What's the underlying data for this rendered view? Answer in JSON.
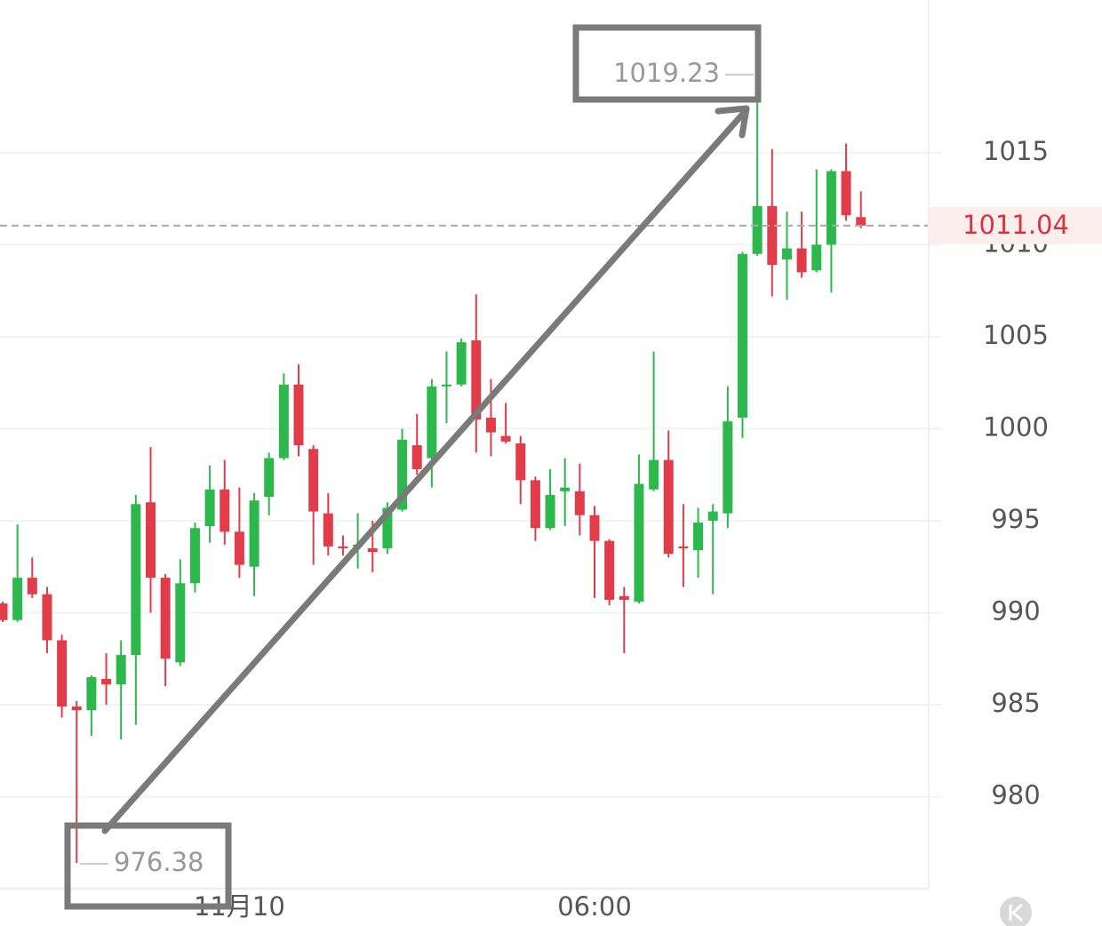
{
  "chart_data": {
    "type": "candlestick",
    "categories": [
      null,
      null,
      null,
      null,
      null,
      null,
      null,
      null,
      null,
      null,
      null,
      null,
      null,
      null,
      null,
      null,
      "11月10",
      null,
      null,
      null,
      null,
      null,
      null,
      null,
      null,
      null,
      null,
      null,
      null,
      null,
      null,
      null,
      null,
      null,
      null,
      null,
      null,
      null,
      null,
      null,
      "06:00",
      null,
      null,
      null,
      null,
      null,
      null,
      null,
      null,
      null,
      null,
      null,
      null,
      null,
      null,
      null,
      null,
      null,
      null
    ],
    "open": [
      990.5,
      989.6,
      991.9,
      991.0,
      988.5,
      984.9,
      984.7,
      986.4,
      986.1,
      987.7,
      996.0,
      991.9,
      987.3,
      991.6,
      994.7,
      996.7,
      994.4,
      992.5,
      996.3,
      998.4,
      1002.4,
      998.9,
      995.4,
      993.6,
      993.6,
      993.5,
      993.5,
      995.6,
      999.1,
      998.4,
      1002.3,
      1002.4,
      1004.8,
      1000.6,
      999.6,
      999.2,
      997.2,
      994.6,
      996.6,
      996.6,
      995.3,
      993.9,
      990.9,
      990.6,
      996.7,
      998.3,
      993.6,
      993.4,
      995.0,
      995.4,
      1000.6,
      1009.5,
      1012.1,
      1009.2,
      1009.8,
      1008.6,
      1010.0,
      1014.0,
      1011.5
    ],
    "high": [
      990.6,
      994.8,
      993.0,
      991.4,
      988.8,
      985.2,
      986.6,
      987.8,
      988.5,
      996.4,
      999.0,
      992.1,
      992.9,
      994.9,
      998.0,
      998.3,
      996.8,
      996.5,
      998.7,
      1003.0,
      1003.5,
      999.1,
      996.5,
      994.2,
      995.4,
      995.0,
      996.0,
      1000.0,
      1000.8,
      1002.7,
      1004.2,
      1004.9,
      1007.3,
      1002.7,
      1001.4,
      999.6,
      997.4,
      997.8,
      998.4,
      998.1,
      995.8,
      994.0,
      991.4,
      998.6,
      1004.2,
      999.9,
      995.9,
      995.7,
      995.9,
      1002.3,
      1009.6,
      1019.23,
      1015.2,
      1011.8,
      1011.8,
      1014.1,
      1014.1,
      1015.5,
      1012.9
    ],
    "low": [
      989.5,
      989.5,
      990.8,
      987.8,
      984.3,
      976.4,
      983.3,
      985.0,
      983.1,
      983.9,
      990.0,
      986.0,
      987.1,
      991.1,
      993.8,
      993.7,
      991.9,
      990.9,
      995.3,
      998.3,
      998.5,
      992.6,
      993.1,
      993.1,
      992.4,
      992.2,
      993.2,
      995.5,
      997.5,
      996.8,
      1000.3,
      1002.3,
      998.7,
      998.5,
      999.2,
      995.9,
      993.9,
      994.5,
      994.7,
      994.2,
      990.8,
      990.4,
      987.8,
      990.5,
      996.6,
      993.0,
      991.4,
      991.9,
      991.0,
      994.6,
      999.5,
      1009.4,
      1007.2,
      1007.0,
      1008.2,
      1008.5,
      1007.4,
      1011.3,
      1010.9
    ],
    "close": [
      989.6,
      991.9,
      991.0,
      988.5,
      984.9,
      984.7,
      986.5,
      986.1,
      987.7,
      995.9,
      991.9,
      987.5,
      991.6,
      994.6,
      996.7,
      994.4,
      992.6,
      996.1,
      998.4,
      1002.4,
      999.1,
      995.5,
      993.6,
      993.5,
      993.7,
      993.3,
      995.7,
      999.4,
      997.8,
      1002.3,
      1002.4,
      1004.7,
      1000.5,
      999.8,
      999.3,
      997.2,
      994.6,
      996.4,
      996.8,
      995.3,
      993.9,
      990.7,
      990.7,
      997.0,
      998.3,
      993.2,
      993.5,
      994.9,
      995.5,
      1000.4,
      1009.5,
      1012.1,
      1008.9,
      1009.8,
      1008.5,
      1010.0,
      1014.0,
      1011.6,
      1011.04
    ],
    "up_color": "#2db84d",
    "down_color": "#e03c4a",
    "ylim": [
      975.0,
      1023.3
    ],
    "yticks": [
      980,
      985,
      990,
      995,
      1000,
      1005,
      1010,
      1015
    ],
    "grid": true,
    "max_price": 1019.23,
    "min_price": 976.38,
    "last_price": 1011.04
  }
}
